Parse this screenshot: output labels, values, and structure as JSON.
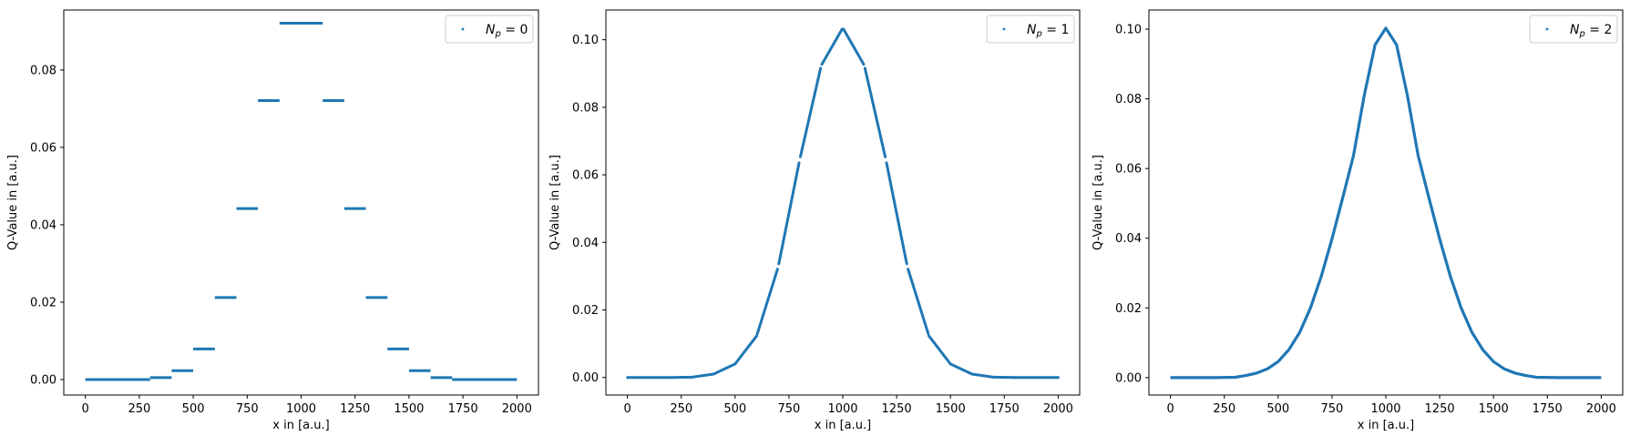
{
  "chart_data": [
    {
      "type": "scatter",
      "title": "",
      "xlabel": "x in [a.u.]",
      "ylabel": "Q-Value in [a.u.]",
      "xlim": [
        -100,
        2100
      ],
      "ylim": [
        -0.004,
        0.0955
      ],
      "xticks": [
        0,
        250,
        500,
        750,
        1000,
        1250,
        1500,
        1750,
        2000
      ],
      "xtick_labels": [
        "0",
        "250",
        "500",
        "750",
        "1000",
        "1250",
        "1500",
        "1750",
        "2000"
      ],
      "yticks": [
        0,
        0.02,
        0.04,
        0.06,
        0.08
      ],
      "ytick_labels": [
        "0.00",
        "0.02",
        "0.04",
        "0.06",
        "0.08"
      ],
      "legend": {
        "placement": "top-right",
        "label": "N_p = 0"
      },
      "color": "#1f77b4",
      "series": [
        {
          "name": "N_p = 0",
          "kind": "piecewise-constant",
          "segments": [
            {
              "x0": 0,
              "x1": 300,
              "y": 0.0
            },
            {
              "x0": 300,
              "x1": 400,
              "y": 0.0005
            },
            {
              "x0": 400,
              "x1": 500,
              "y": 0.0023
            },
            {
              "x0": 500,
              "x1": 600,
              "y": 0.0079
            },
            {
              "x0": 600,
              "x1": 700,
              "y": 0.0212
            },
            {
              "x0": 700,
              "x1": 800,
              "y": 0.0442
            },
            {
              "x0": 800,
              "x1": 900,
              "y": 0.0721
            },
            {
              "x0": 900,
              "x1": 1100,
              "y": 0.0921
            },
            {
              "x0": 1100,
              "x1": 1200,
              "y": 0.0721
            },
            {
              "x0": 1200,
              "x1": 1300,
              "y": 0.0442
            },
            {
              "x0": 1300,
              "x1": 1400,
              "y": 0.0212
            },
            {
              "x0": 1400,
              "x1": 1500,
              "y": 0.0079
            },
            {
              "x0": 1500,
              "x1": 1600,
              "y": 0.0023
            },
            {
              "x0": 1600,
              "x1": 1700,
              "y": 0.0005
            },
            {
              "x0": 1700,
              "x1": 2000,
              "y": 0.0
            }
          ]
        }
      ]
    },
    {
      "type": "scatter",
      "title": "",
      "xlabel": "x in [a.u.]",
      "ylabel": "Q-Value in [a.u.]",
      "xlim": [
        -100,
        2100
      ],
      "ylim": [
        -0.0052,
        0.1088
      ],
      "xticks": [
        0,
        250,
        500,
        750,
        1000,
        1250,
        1500,
        1750,
        2000
      ],
      "xtick_labels": [
        "0",
        "250",
        "500",
        "750",
        "1000",
        "1250",
        "1500",
        "1750",
        "2000"
      ],
      "yticks": [
        0,
        0.02,
        0.04,
        0.06,
        0.08,
        0.1
      ],
      "ytick_labels": [
        "0.00",
        "0.02",
        "0.04",
        "0.06",
        "0.08",
        "0.10"
      ],
      "legend": {
        "placement": "top-right",
        "label": "N_p = 1"
      },
      "color": "#1f77b4",
      "series": [
        {
          "name": "N_p = 1",
          "kind": "piecewise-linear",
          "knots_x": [
            0,
            100,
            200,
            300,
            400,
            500,
            600,
            700,
            800,
            900,
            1000,
            1100,
            1200,
            1300,
            1400,
            1500,
            1600,
            1700,
            1800,
            1900,
            2000
          ],
          "knots_y": [
            0.0,
            0.0,
            0.0,
            0.0001,
            0.001,
            0.004,
            0.0123,
            0.0327,
            0.0645,
            0.0924,
            0.1035,
            0.0924,
            0.0645,
            0.0327,
            0.0123,
            0.004,
            0.001,
            0.0001,
            0.0,
            0.0,
            0.0
          ]
        }
      ]
    },
    {
      "type": "scatter",
      "title": "",
      "xlabel": "x in [a.u.]",
      "ylabel": "Q-Value in [a.u.]",
      "xlim": [
        -100,
        2100
      ],
      "ylim": [
        -0.005,
        0.1055
      ],
      "xticks": [
        0,
        250,
        500,
        750,
        1000,
        1250,
        1500,
        1750,
        2000
      ],
      "xtick_labels": [
        "0",
        "250",
        "500",
        "750",
        "1000",
        "1250",
        "1500",
        "1750",
        "2000"
      ],
      "yticks": [
        0,
        0.02,
        0.04,
        0.06,
        0.08,
        0.1
      ],
      "ytick_labels": [
        "0.00",
        "0.02",
        "0.04",
        "0.06",
        "0.08",
        "0.10"
      ],
      "legend": {
        "placement": "top-right",
        "label": "N_p = 2"
      },
      "color": "#1f77b4",
      "series": [
        {
          "name": "N_p = 2",
          "kind": "smooth-curve",
          "x": [
            0,
            100,
            200,
            300,
            350,
            400,
            450,
            500,
            550,
            600,
            650,
            700,
            750,
            800,
            850,
            900,
            950,
            1000,
            1050,
            1100,
            1150,
            1200,
            1250,
            1300,
            1350,
            1400,
            1450,
            1500,
            1550,
            1600,
            1650,
            1700,
            1800,
            1900,
            2000
          ],
          "y": [
            0.0,
            0.0,
            0.0,
            0.0001,
            0.0006,
            0.0013,
            0.0025,
            0.0046,
            0.008,
            0.013,
            0.02,
            0.029,
            0.0398,
            0.0516,
            0.0637,
            0.0811,
            0.0955,
            0.1003,
            0.0955,
            0.0811,
            0.0637,
            0.0516,
            0.0398,
            0.029,
            0.02,
            0.013,
            0.008,
            0.0046,
            0.0025,
            0.0013,
            0.0006,
            0.0001,
            0.0,
            0.0,
            0.0
          ]
        }
      ]
    }
  ]
}
